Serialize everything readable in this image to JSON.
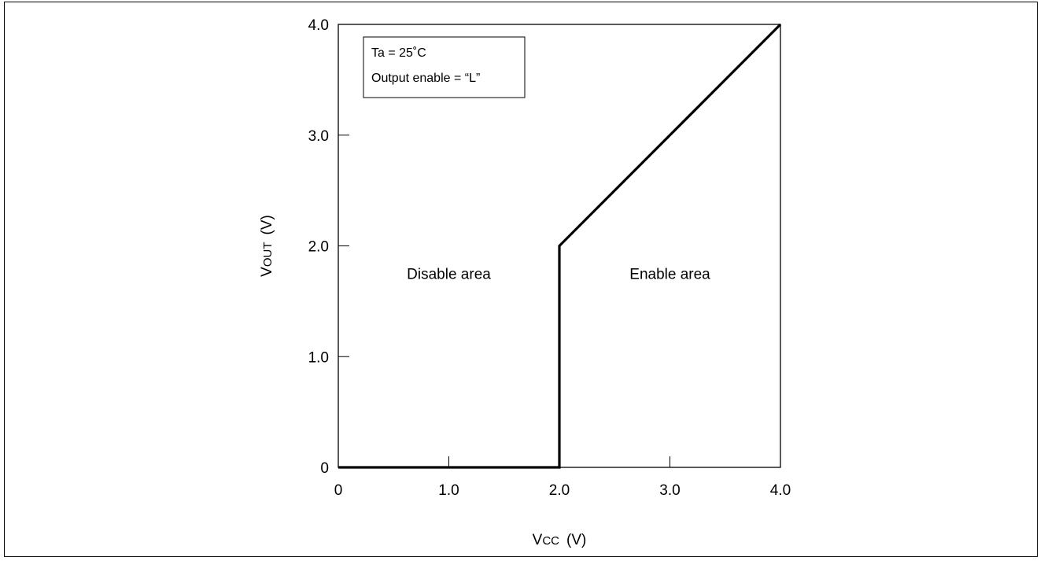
{
  "chart_data": {
    "type": "line",
    "title": "",
    "xlabel": {
      "main": "V",
      "sub": "CC",
      "unit": "(V)"
    },
    "ylabel": {
      "main": "V",
      "sub": "OUT",
      "unit": "(V)"
    },
    "xlim": [
      0,
      4
    ],
    "ylim": [
      0,
      4
    ],
    "x_ticks": [
      0,
      1,
      2,
      3,
      4
    ],
    "x_tick_labels": [
      "0",
      "1.0",
      "2.0",
      "3.0",
      "4.0"
    ],
    "y_ticks": [
      0,
      1,
      2,
      3,
      4
    ],
    "y_tick_labels": [
      "0",
      "1.0",
      "2.0",
      "3.0",
      "4.0"
    ],
    "grid": false,
    "legend": {
      "placement": "top-left",
      "lines": [
        "Ta = 25˚C",
        "Output enable = “L”"
      ]
    },
    "annotations": [
      {
        "text": "Disable area",
        "x": 1.0,
        "y": 1.7
      },
      {
        "text": "Enable area",
        "x": 3.0,
        "y": 1.7
      }
    ],
    "series": [
      {
        "x": [
          0,
          2,
          2,
          4
        ],
        "y": [
          0,
          0,
          2,
          4
        ]
      }
    ]
  }
}
